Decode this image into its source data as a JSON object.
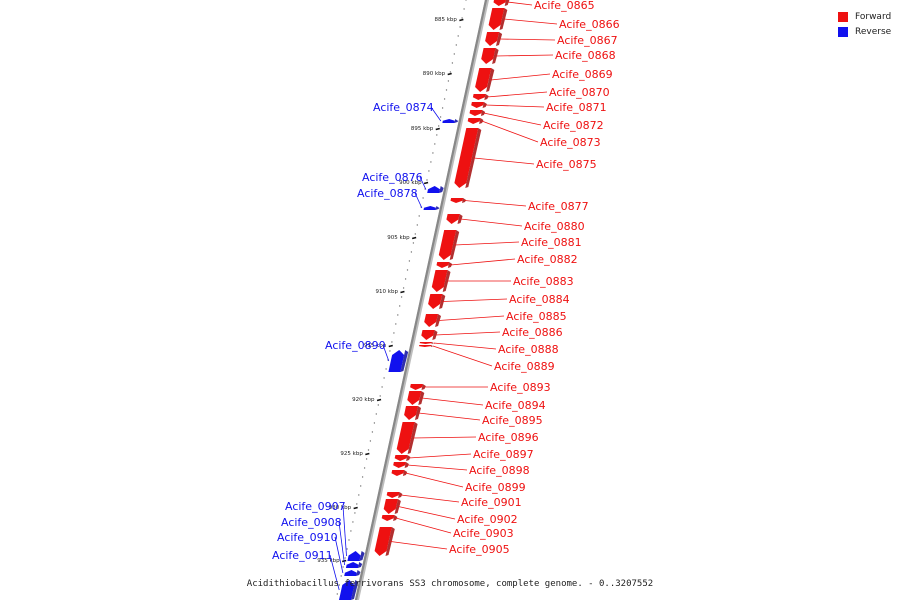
{
  "caption": "Acidithiobacillus ferrivorans SS3 chromosome, complete genome. - 0..3207552",
  "legend": [
    {
      "label": "Forward",
      "color": "#ee1111",
      "strand": "forward"
    },
    {
      "label": "Reverse",
      "color": "#1111ee",
      "strand": "reverse"
    }
  ],
  "colors": {
    "forward": "#ee1111",
    "reverse": "#1111ee",
    "backbone": "#888888",
    "tick": "#111111"
  },
  "ticks": [
    "885 kbp",
    "890 kbp",
    "895 kbp",
    "900 kbp",
    "905 kbp",
    "910 kbp",
    "915 kbp",
    "920 kbp",
    "925 kbp",
    "930 kbp",
    "935 kbp"
  ],
  "genes": [
    {
      "name": "Acife_0865",
      "strand": "forward"
    },
    {
      "name": "Acife_0866",
      "strand": "forward"
    },
    {
      "name": "Acife_0867",
      "strand": "forward"
    },
    {
      "name": "Acife_0868",
      "strand": "forward"
    },
    {
      "name": "Acife_0869",
      "strand": "forward"
    },
    {
      "name": "Acife_0870",
      "strand": "forward"
    },
    {
      "name": "Acife_0871",
      "strand": "forward"
    },
    {
      "name": "Acife_0872",
      "strand": "forward"
    },
    {
      "name": "Acife_0873",
      "strand": "forward"
    },
    {
      "name": "Acife_0874",
      "strand": "reverse"
    },
    {
      "name": "Acife_0875",
      "strand": "forward"
    },
    {
      "name": "Acife_0876",
      "strand": "reverse"
    },
    {
      "name": "Acife_0877",
      "strand": "forward"
    },
    {
      "name": "Acife_0878",
      "strand": "reverse"
    },
    {
      "name": "Acife_0880",
      "strand": "forward"
    },
    {
      "name": "Acife_0881",
      "strand": "forward"
    },
    {
      "name": "Acife_0882",
      "strand": "forward"
    },
    {
      "name": "Acife_0883",
      "strand": "forward"
    },
    {
      "name": "Acife_0884",
      "strand": "forward"
    },
    {
      "name": "Acife_0885",
      "strand": "forward"
    },
    {
      "name": "Acife_0886",
      "strand": "forward"
    },
    {
      "name": "Acife_0888",
      "strand": "forward"
    },
    {
      "name": "Acife_0889",
      "strand": "forward"
    },
    {
      "name": "Acife_0890",
      "strand": "reverse"
    },
    {
      "name": "Acife_0893",
      "strand": "forward"
    },
    {
      "name": "Acife_0894",
      "strand": "forward"
    },
    {
      "name": "Acife_0895",
      "strand": "forward"
    },
    {
      "name": "Acife_0896",
      "strand": "forward"
    },
    {
      "name": "Acife_0897",
      "strand": "forward"
    },
    {
      "name": "Acife_0898",
      "strand": "forward"
    },
    {
      "name": "Acife_0899",
      "strand": "forward"
    },
    {
      "name": "Acife_0901",
      "strand": "forward"
    },
    {
      "name": "Acife_0902",
      "strand": "forward"
    },
    {
      "name": "Acife_0903",
      "strand": "forward"
    },
    {
      "name": "Acife_0905",
      "strand": "forward"
    },
    {
      "name": "Acife_0907",
      "strand": "reverse"
    },
    {
      "name": "Acife_0908",
      "strand": "reverse"
    },
    {
      "name": "Acife_0910",
      "strand": "reverse"
    },
    {
      "name": "Acife_0911",
      "strand": "reverse"
    }
  ]
}
